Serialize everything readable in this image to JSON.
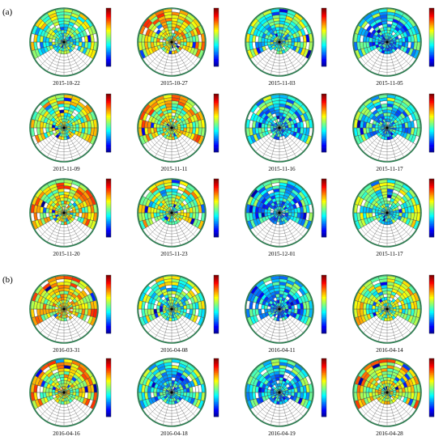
{
  "panels": [
    {
      "label": "(a)",
      "dates": [
        "2015-10-22",
        "2015-10-27",
        "2015-11-03",
        "2015-11-05",
        "2015-11-09",
        "2015-11-11",
        "2015-11-16",
        "2015-11-17",
        "2015-11-20",
        "2015-11-23",
        "2015-12-01",
        "2015-11-17"
      ]
    },
    {
      "label": "(b)",
      "dates": [
        "2016-03-31",
        "2016-04-08",
        "2016-04-11",
        "2016-04-14",
        "2016-04-16",
        "2016-04-18",
        "2016-04-19",
        "2016-04-28"
      ]
    }
  ],
  "colors": {
    "colormap": [
      "#00008f",
      "#0000ff",
      "#0080ff",
      "#00ffff",
      "#80ff80",
      "#ffff00",
      "#ff8000",
      "#ff0000",
      "#800000"
    ],
    "grid": "#3a3a3a",
    "missing": "#ffffff"
  },
  "chart_data": {
    "type": "heatmap",
    "subtype": "polar",
    "description_panels": 20,
    "colorbar": "jet",
    "grid_rings": 11,
    "grid_spokes": 24
  }
}
